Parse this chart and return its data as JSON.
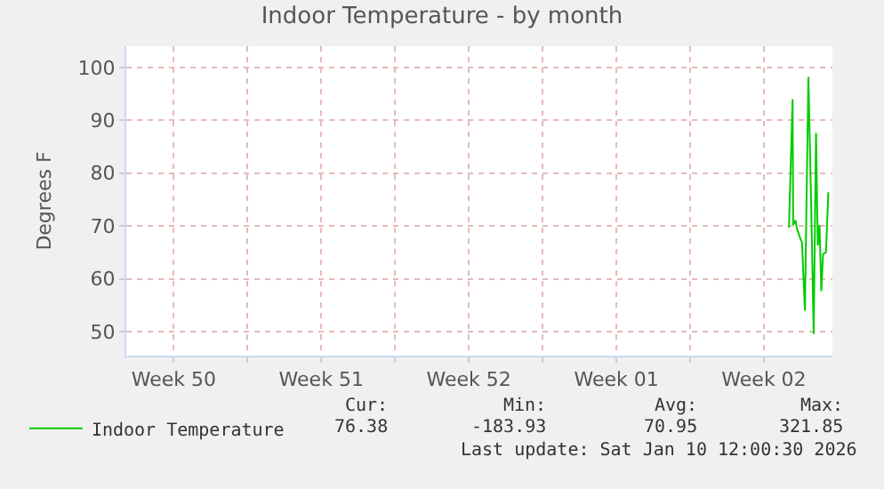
{
  "chart_data": {
    "type": "line",
    "title": "Indoor Temperature - by month",
    "ylabel": "Degrees F",
    "x": [
      "2026-01-08T16:30",
      "2026-01-08T20:40",
      "2026-01-08T21:20",
      "2026-01-09T00:00",
      "2026-01-09T01:20",
      "2026-01-09T04:40",
      "2026-01-09T07:20",
      "2026-01-09T10:40",
      "2026-01-09T14:40",
      "2026-01-09T18:00",
      "2026-01-09T20:40",
      "2026-01-09T23:20",
      "2026-01-10T01:20",
      "2026-01-10T03:20",
      "2026-01-10T05:20",
      "2026-01-10T07:20",
      "2026-01-10T10:40",
      "2026-01-10T13:20"
    ],
    "series": [
      {
        "name": "Indoor Temperature",
        "color": "#00cc00",
        "values": [
          69.7,
          94,
          70.2,
          71.1,
          69.7,
          68,
          66.9,
          54,
          98.2,
          72.5,
          49.6,
          87.6,
          66.3,
          70.2,
          57.7,
          64.7,
          65,
          76.4
        ]
      }
    ],
    "xlim": [
      "2025-12-08T06:00",
      "2026-01-10T18:00"
    ],
    "xticks": [
      {
        "value": "2025-12-10T12:00",
        "label": "Week 50"
      },
      {
        "value": "2025-12-14",
        "label": null
      },
      {
        "value": "2025-12-17T12:00",
        "label": "Week 51"
      },
      {
        "value": "2025-12-21",
        "label": null
      },
      {
        "value": "2025-12-24T12:00",
        "label": "Week 52"
      },
      {
        "value": "2025-12-28",
        "label": null
      },
      {
        "value": "2025-12-31T12:00",
        "label": "Week 01"
      },
      {
        "value": "2026-01-04",
        "label": null
      },
      {
        "value": "2026-01-07T12:00",
        "label": "Week 02"
      }
    ],
    "ylim": [
      45.5,
      104
    ],
    "yticks": [
      50,
      60,
      70,
      80,
      90,
      100
    ],
    "grid": true,
    "legend": "bottom left",
    "marker": "none",
    "line_style": "solid",
    "annotations": [
      "Cur:",
      "Min:",
      "Avg:",
      "Max:",
      "76.38",
      "-183.93",
      "70.95",
      "321.85",
      "Last update: Sat Jan 10 12:00:30 2026"
    ]
  }
}
